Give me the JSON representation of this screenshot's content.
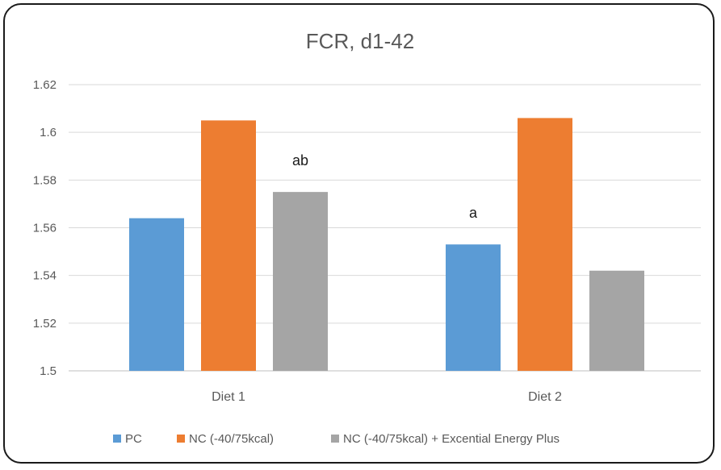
{
  "chart_data": {
    "type": "bar",
    "title": "FCR, d1-42",
    "categories": [
      "Diet 1",
      "Diet 2"
    ],
    "ylim": [
      1.5,
      1.62
    ],
    "yticks": [
      "1.5",
      "1.52",
      "1.54",
      "1.56",
      "1.58",
      "1.6",
      "1.62"
    ],
    "grid": true,
    "legend_position": "bottom",
    "series": [
      {
        "name": "PC",
        "color": "#5b9bd5",
        "values": [
          1.564,
          1.553
        ]
      },
      {
        "name": "NC (-40/75kcal)",
        "color": "#ed7d31",
        "values": [
          1.605,
          1.606
        ]
      },
      {
        "name": "NC (-40/75kcal) + Excential Energy Plus",
        "color": "#a5a5a5",
        "values": [
          1.575,
          1.542
        ]
      }
    ],
    "annotations": [
      {
        "text": "ab",
        "category": "Diet 1",
        "series": "NC (-40/75kcal) + Excential Energy Plus"
      },
      {
        "text": "a",
        "category": "Diet 2",
        "series": "PC"
      }
    ]
  }
}
